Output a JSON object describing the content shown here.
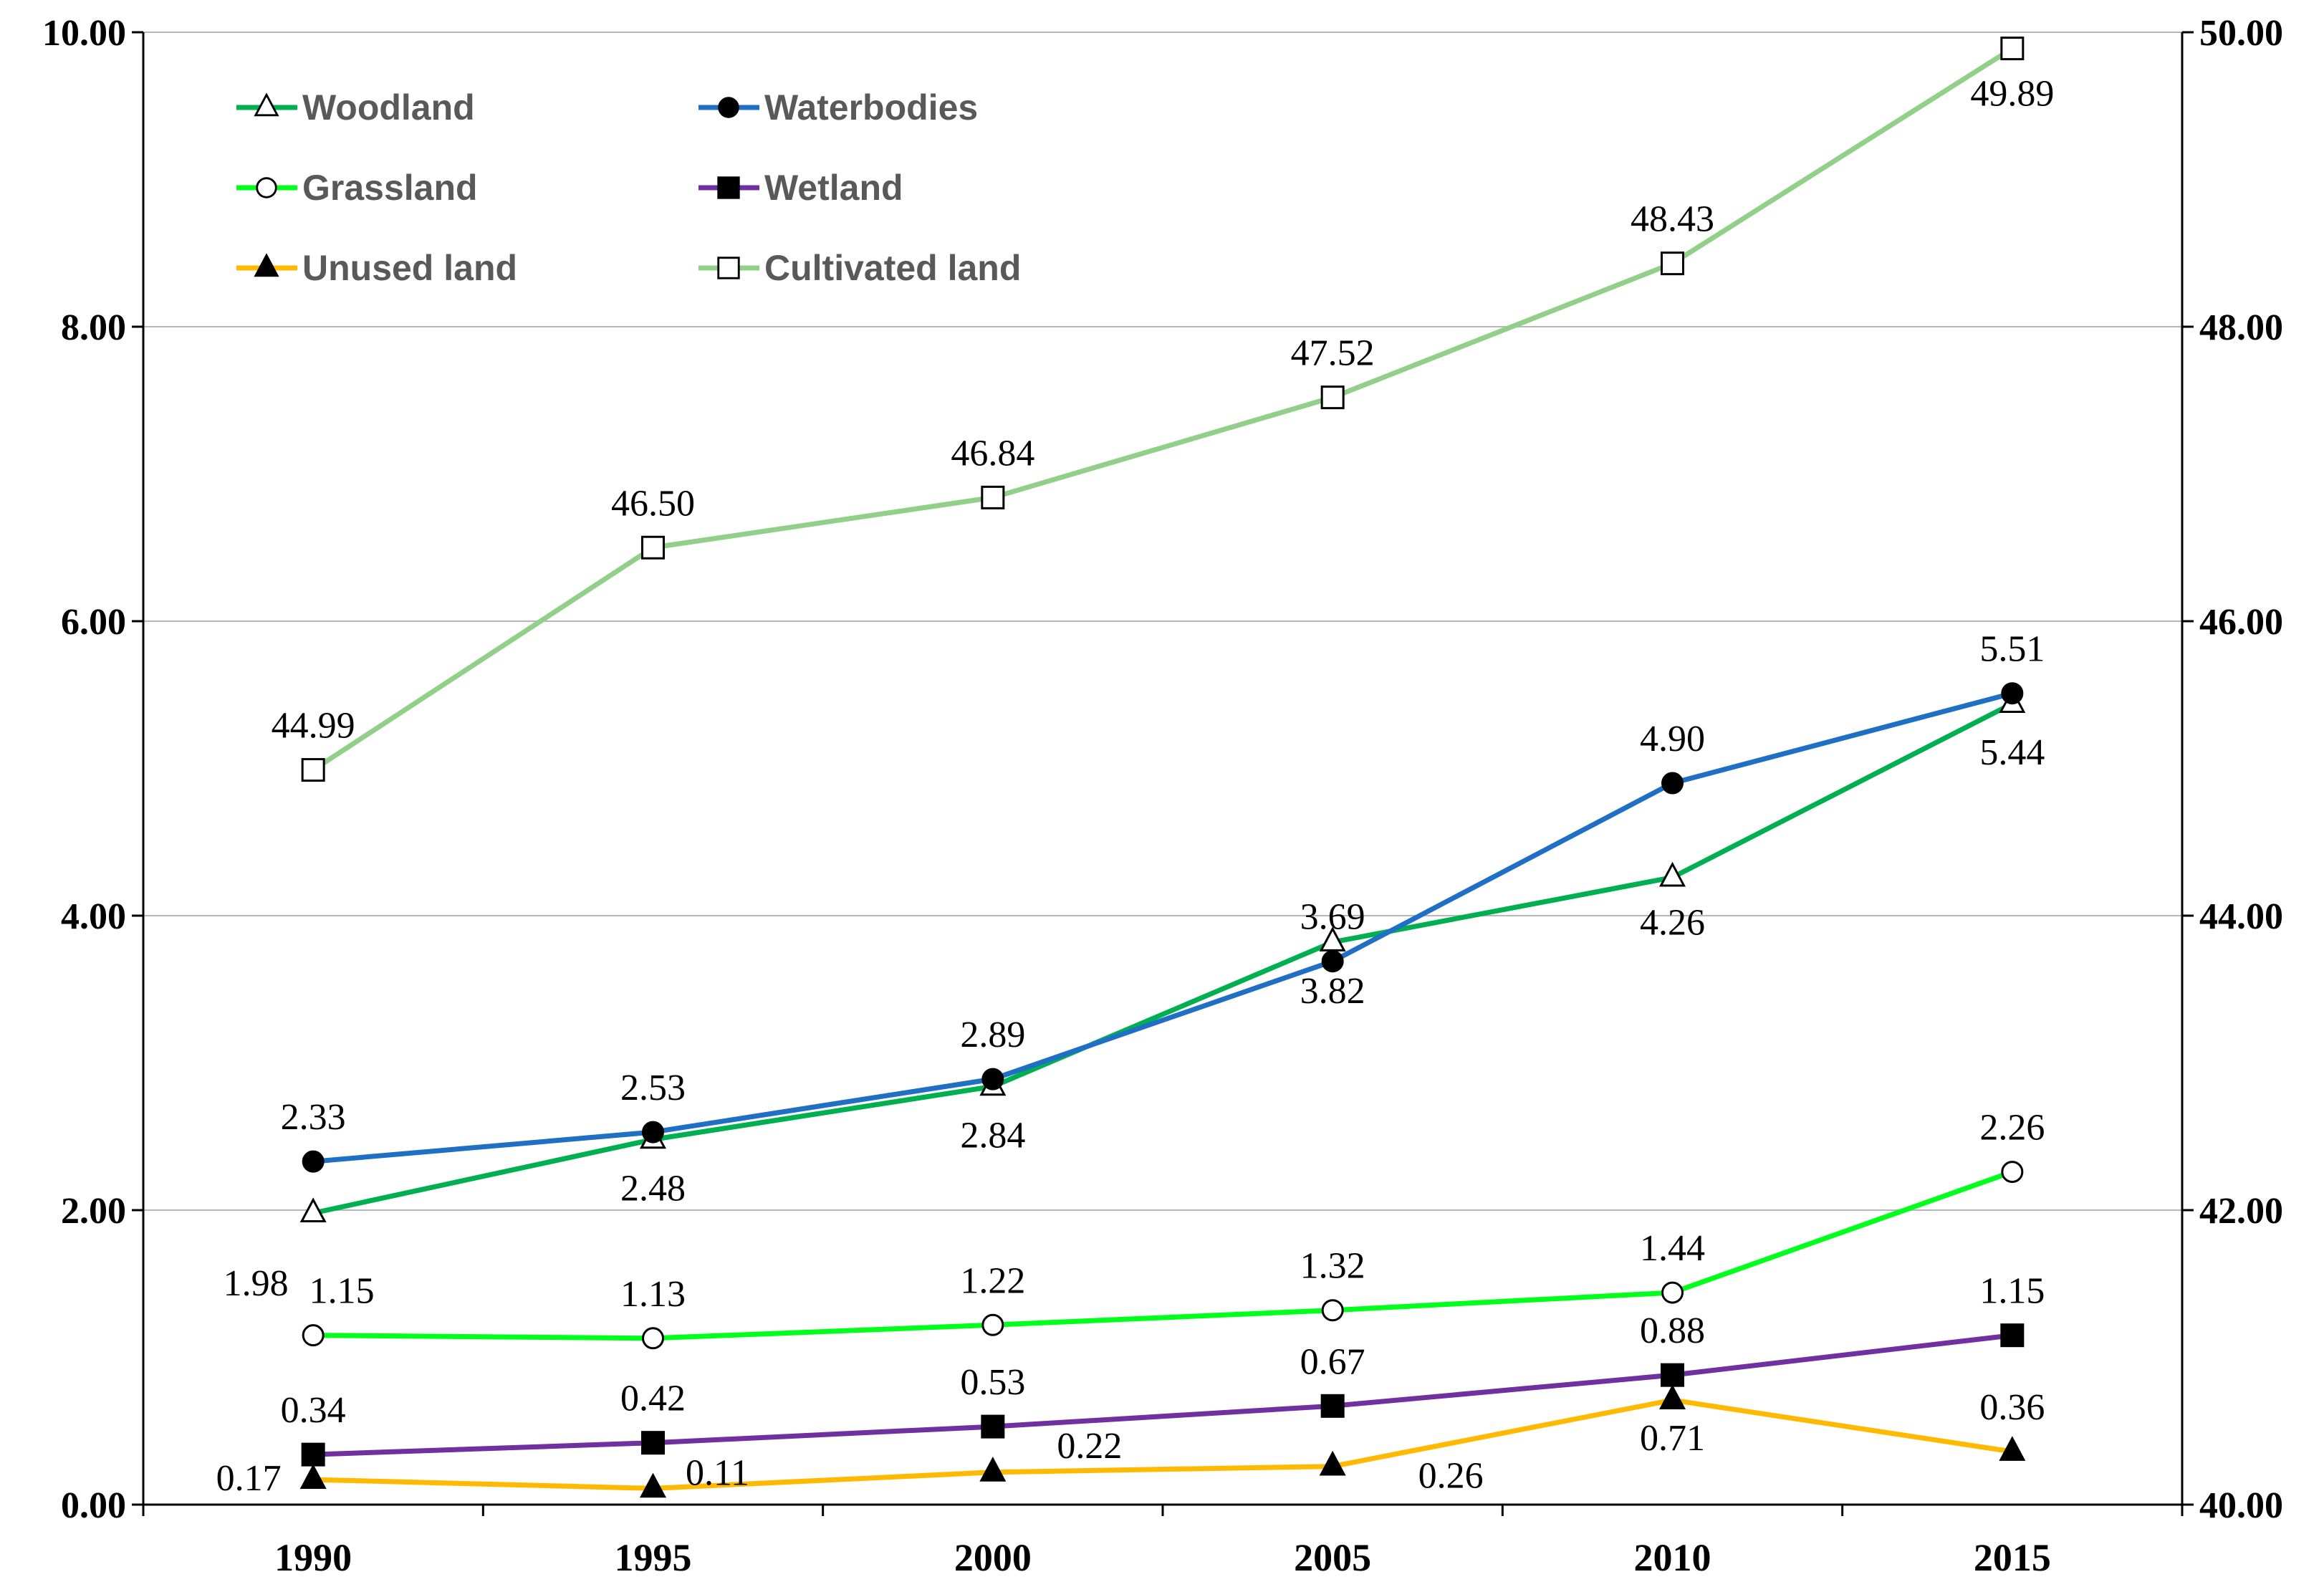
{
  "chart_data": {
    "type": "line",
    "title": "",
    "xlabel": "",
    "ylabel": "",
    "ylim": [
      0,
      10
    ],
    "y2lim": [
      40,
      50
    ],
    "categories": [
      "1990",
      "1995",
      "2000",
      "2005",
      "2010",
      "2015"
    ],
    "left_ticks": [
      "0.00",
      "2.00",
      "4.00",
      "6.00",
      "8.00",
      "10.00"
    ],
    "right_ticks": [
      "40.00",
      "42.00",
      "44.00",
      "46.00",
      "48.00",
      "50.00"
    ],
    "grid": true,
    "legend_position": "top-left",
    "series": [
      {
        "name": "Woodland",
        "axis": "left",
        "color": "#00B050",
        "marker": "triangle-open",
        "values": [
          1.98,
          2.48,
          2.84,
          3.82,
          4.26,
          5.44
        ],
        "labels": [
          "1.98",
          "2.48",
          "2.84",
          "3.82",
          "4.26",
          "5.44"
        ]
      },
      {
        "name": "Waterbodies",
        "axis": "left",
        "color": "#1F6FC5",
        "marker": "circle-filled",
        "values": [
          2.33,
          2.53,
          2.89,
          3.69,
          4.9,
          5.51
        ],
        "labels": [
          "2.33",
          "2.53",
          "2.89",
          "3.69",
          "4.90",
          "5.51"
        ]
      },
      {
        "name": "Grassland",
        "axis": "left",
        "color": "#00FF1A",
        "marker": "circle-open",
        "values": [
          1.15,
          1.13,
          1.22,
          1.32,
          1.44,
          2.26
        ],
        "labels": [
          "1.15",
          "1.13",
          "1.22",
          "1.32",
          "1.44",
          "2.26"
        ]
      },
      {
        "name": "Wetland",
        "axis": "left",
        "color": "#7030A0",
        "marker": "square-filled",
        "values": [
          0.34,
          0.42,
          0.53,
          0.67,
          0.88,
          1.15
        ],
        "labels": [
          "0.34",
          "0.42",
          "0.53",
          "0.67",
          "0.88",
          "1.15"
        ]
      },
      {
        "name": "Unused land",
        "axis": "left",
        "color": "#FFB900",
        "marker": "triangle-filled",
        "values": [
          0.17,
          0.11,
          0.22,
          0.26,
          0.71,
          0.36
        ],
        "labels": [
          "0.17",
          "0.11",
          "0.22",
          "0.26",
          "0.71",
          "0.36"
        ]
      },
      {
        "name": "Cultivated land",
        "axis": "right",
        "color": "#92D08A",
        "marker": "square-open",
        "values": [
          44.99,
          46.5,
          46.84,
          47.52,
          48.43,
          49.89
        ],
        "labels": [
          "44.99",
          "46.50",
          "46.84",
          "47.52",
          "48.43",
          "49.89"
        ]
      }
    ]
  }
}
